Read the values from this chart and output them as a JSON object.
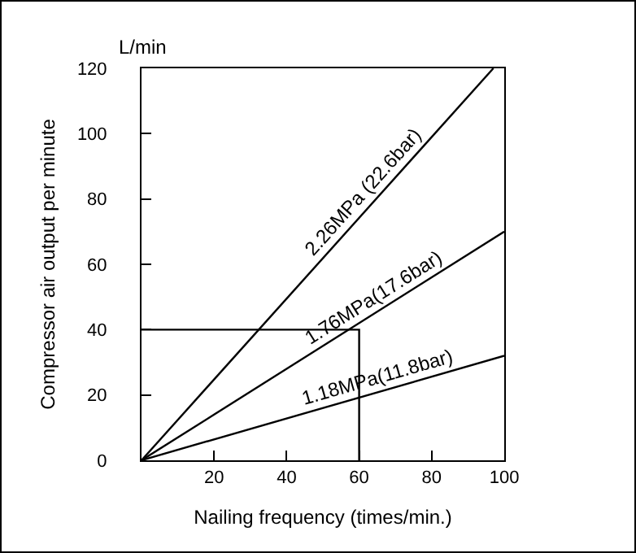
{
  "chart_data": {
    "type": "line",
    "xlabel": "Nailing frequency (times/min.)",
    "ylabel": "Compressor air output per minute",
    "annotations": [
      "L/min"
    ],
    "xlim": [
      0,
      100
    ],
    "xticks": [
      20,
      40,
      60,
      80,
      100
    ],
    "ylim": [
      0,
      120
    ],
    "yticks": [
      0,
      20,
      40,
      60,
      80,
      100,
      120
    ],
    "series": [
      {
        "name": "2.26MPa (22.6bar)",
        "color": "#000000",
        "x": [
          0,
          97
        ],
        "values": [
          0,
          120
        ]
      },
      {
        "name": "1.76MPa(17.6bar)",
        "color": "#000000",
        "x": [
          0,
          100
        ],
        "values": [
          0,
          70
        ]
      },
      {
        "name": "1.18MPa(11.8bar)",
        "color": "#000000",
        "x": [
          0,
          100
        ],
        "values": [
          0,
          32
        ]
      },
      {
        "color": "#000000",
        "x": [
          0,
          60,
          60
        ],
        "values": [
          40,
          40,
          0
        ]
      }
    ]
  }
}
